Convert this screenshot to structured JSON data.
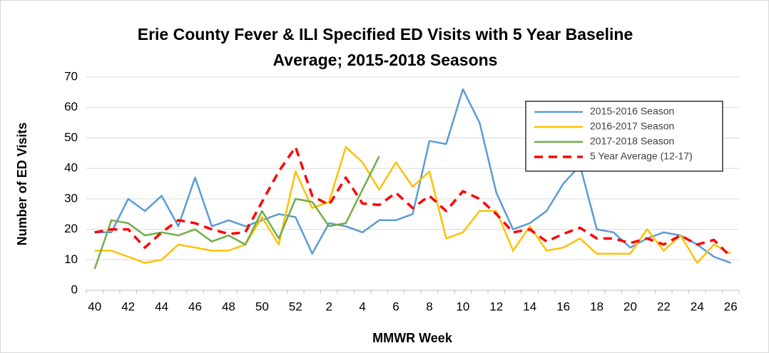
{
  "chart_data": {
    "type": "line",
    "title": "Erie County Fever & ILI Specified ED Visits with 5 Year Baseline Average; 2015-2018 Seasons",
    "x_label": "MMWR Week",
    "y_label": "Number of ED Visits",
    "categories": [
      "40",
      null,
      "42",
      null,
      "44",
      null,
      "46",
      null,
      "48",
      null,
      "50",
      null,
      "52",
      null,
      "2",
      null,
      "4",
      null,
      "6",
      null,
      "8",
      null,
      "10",
      null,
      "12",
      null,
      "14",
      null,
      "16",
      null,
      "18",
      null,
      "20",
      null,
      "22",
      null,
      "24",
      null,
      "26"
    ],
    "series": [
      {
        "name": "2015-2016 Season",
        "color": "#5b9bd5",
        "dash": false,
        "values": [
          19,
          19,
          30,
          26,
          31,
          21,
          37,
          21,
          23,
          21,
          23,
          25,
          24,
          12,
          22,
          21,
          19,
          23,
          23,
          25,
          49,
          48,
          66,
          55,
          32,
          20,
          22,
          26,
          35,
          41,
          20,
          19,
          14,
          17,
          19,
          18,
          15,
          11,
          9
        ]
      },
      {
        "name": "2016-2017 Season",
        "color": "#ffc000",
        "dash": false,
        "values": [
          13,
          13,
          11,
          9,
          10,
          15,
          14,
          13,
          13,
          15,
          24,
          15,
          39,
          27,
          29,
          47,
          42,
          33,
          42,
          34,
          39,
          17,
          19,
          26,
          26,
          13,
          21,
          13,
          14,
          17,
          12,
          12,
          12,
          20,
          13,
          18,
          9,
          15,
          12
        ]
      },
      {
        "name": "2017-2018 Season",
        "color": "#70ad47",
        "dash": false,
        "values": [
          7,
          23,
          22,
          18,
          19,
          18,
          20,
          16,
          18,
          15,
          26,
          17,
          30,
          29,
          21,
          22,
          33,
          44,
          null,
          null,
          null,
          null,
          null,
          null,
          null,
          null,
          null,
          null,
          null,
          null,
          null,
          null,
          null,
          null,
          null,
          null,
          null,
          null,
          null
        ]
      },
      {
        "name": "5 Year Average (12-17)",
        "color": "#ff0000",
        "dash": true,
        "values": [
          19,
          20,
          20,
          14,
          19,
          23,
          22,
          20,
          18.5,
          19,
          29,
          39,
          47,
          31,
          28,
          37,
          28.5,
          28,
          32,
          27,
          31,
          26,
          32.5,
          30,
          25,
          19,
          20,
          16,
          18.5,
          20.5,
          17,
          17,
          15.5,
          17,
          15,
          18,
          15,
          16.5,
          11
        ]
      }
    ],
    "ylim": [
      0,
      70
    ],
    "yticks": [
      0,
      10,
      20,
      30,
      40,
      50,
      60,
      70
    ],
    "grid": true,
    "legend": "upper right"
  }
}
